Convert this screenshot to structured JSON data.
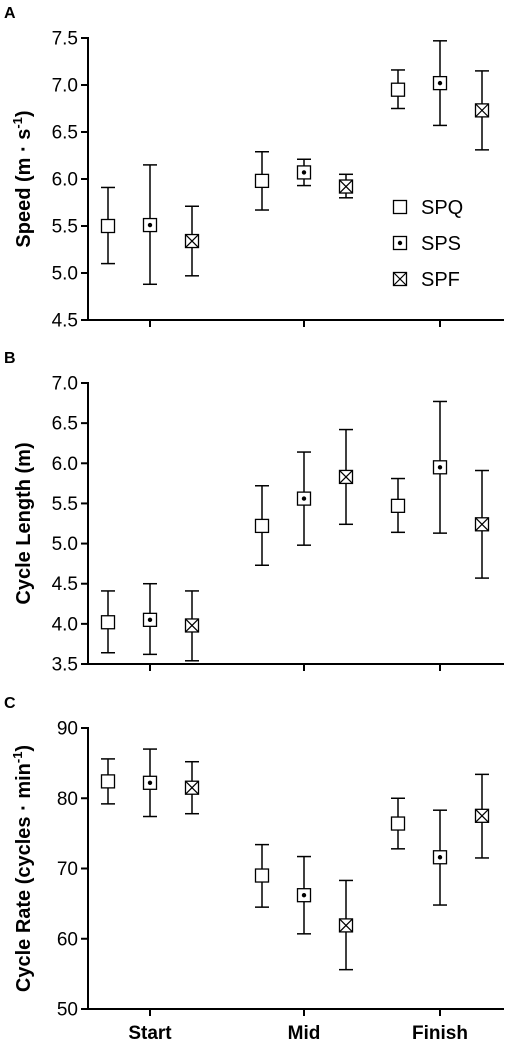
{
  "chart_data": [
    {
      "panel": "A",
      "type": "scatter",
      "categories": [
        "Start",
        "Mid",
        "Finish"
      ],
      "ylabel": "Speed (m · s⁻¹)",
      "ylabel_parts": {
        "main": "Speed (m · s",
        "sup": "-1",
        "end": ")"
      },
      "ylim": [
        4.5,
        7.5
      ],
      "yticks": [
        "4.5",
        "5.0",
        "5.5",
        "6.0",
        "6.5",
        "7.0",
        "7.5"
      ],
      "legend": {
        "placement": "right-middle",
        "entries": [
          "SPQ",
          "SPS",
          "SPF"
        ]
      },
      "series": [
        {
          "name": "SPQ",
          "marker": "square",
          "values": [
            5.5,
            5.98,
            6.95
          ],
          "err_low": [
            5.1,
            5.67,
            6.75
          ],
          "err_high": [
            5.91,
            6.29,
            7.16
          ]
        },
        {
          "name": "SPS",
          "marker": "square-dot",
          "values": [
            5.51,
            6.07,
            7.02
          ],
          "err_low": [
            4.88,
            5.93,
            6.57
          ],
          "err_high": [
            6.15,
            6.21,
            7.47
          ]
        },
        {
          "name": "SPF",
          "marker": "square-x",
          "values": [
            5.34,
            5.92,
            6.73
          ],
          "err_low": [
            4.97,
            5.8,
            6.31
          ],
          "err_high": [
            5.71,
            6.05,
            7.15
          ]
        }
      ]
    },
    {
      "panel": "B",
      "type": "scatter",
      "categories": [
        "Start",
        "Mid",
        "Finish"
      ],
      "ylabel": "Cycle Length (m)",
      "ylabel_parts": {
        "main": "Cycle Length (m)",
        "sup": "",
        "end": ""
      },
      "ylim": [
        3.5,
        7.0
      ],
      "yticks": [
        "3.5",
        "4.0",
        "4.5",
        "5.0",
        "5.5",
        "6.0",
        "6.5",
        "7.0"
      ],
      "series": [
        {
          "name": "SPQ",
          "marker": "square",
          "values": [
            4.02,
            5.22,
            5.47
          ],
          "err_low": [
            3.64,
            4.73,
            5.14
          ],
          "err_high": [
            4.41,
            5.72,
            5.81
          ]
        },
        {
          "name": "SPS",
          "marker": "square-dot",
          "values": [
            4.05,
            5.56,
            5.95
          ],
          "err_low": [
            3.62,
            4.98,
            5.13
          ],
          "err_high": [
            4.5,
            6.14,
            6.77
          ]
        },
        {
          "name": "SPF",
          "marker": "square-x",
          "values": [
            3.98,
            5.83,
            5.24
          ],
          "err_low": [
            3.54,
            5.24,
            4.57
          ],
          "err_high": [
            4.41,
            6.42,
            5.91
          ]
        }
      ]
    },
    {
      "panel": "C",
      "type": "scatter",
      "categories": [
        "Start",
        "Mid",
        "Finish"
      ],
      "ylabel": "Cycle Rate (cycles · min⁻¹)",
      "ylabel_parts": {
        "main": "Cycle Rate (cycles · min",
        "sup": "-1",
        "end": ")"
      },
      "ylim": [
        50,
        90
      ],
      "yticks": [
        "50",
        "60",
        "70",
        "80",
        "90"
      ],
      "series": [
        {
          "name": "SPQ",
          "marker": "square",
          "values": [
            82.4,
            69.0,
            76.4
          ],
          "err_low": [
            79.2,
            64.5,
            72.8
          ],
          "err_high": [
            85.6,
            73.4,
            80.0
          ]
        },
        {
          "name": "SPS",
          "marker": "square-dot",
          "values": [
            82.2,
            66.2,
            71.6
          ],
          "err_low": [
            77.4,
            60.7,
            64.8
          ],
          "err_high": [
            87.0,
            71.7,
            78.3
          ]
        },
        {
          "name": "SPF",
          "marker": "square-x",
          "values": [
            81.5,
            61.9,
            77.5
          ],
          "err_low": [
            77.8,
            55.6,
            71.5
          ],
          "err_high": [
            85.2,
            68.3,
            83.4
          ]
        }
      ]
    }
  ]
}
